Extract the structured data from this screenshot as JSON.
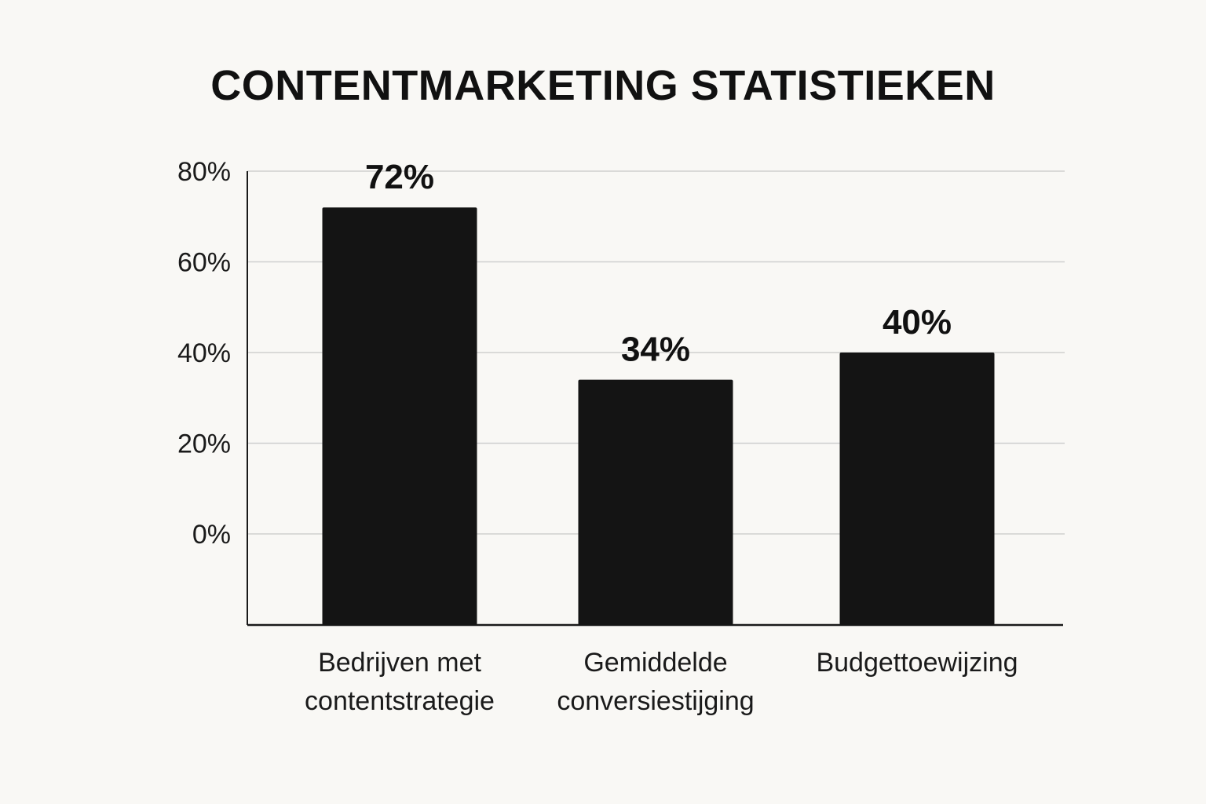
{
  "title": "CONTENTMARKETING STATISTIEKEN",
  "colors": {
    "bar": "#141414",
    "gridline": "#cfcfcf",
    "axis": "#1a1a1a",
    "background": "#f9f8f5"
  },
  "chart_data": {
    "type": "bar",
    "title": "CONTENTMARKETING STATISTIEKEN",
    "categories": [
      [
        "Bedrijven met",
        "contentstrategie"
      ],
      [
        "Gemiddelde",
        "conversiestijging"
      ],
      [
        "Budgettoewijzing"
      ]
    ],
    "values": [
      72,
      34,
      40
    ],
    "value_labels": [
      "72%",
      "34%",
      "40%"
    ],
    "y_ticks": [
      0,
      20,
      40,
      60,
      80
    ],
    "y_tick_labels": [
      "0%",
      "20%",
      "40%",
      "60%",
      "80%"
    ],
    "ylim": [
      0,
      80
    ],
    "grid": true,
    "legend": "none",
    "xlabel": "",
    "ylabel": ""
  }
}
